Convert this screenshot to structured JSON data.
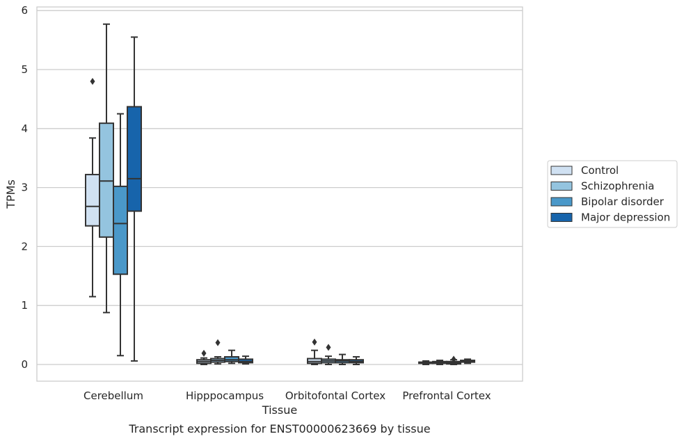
{
  "chart_data": {
    "type": "boxplot",
    "caption": "Transcript expression for ENST00000623669 by tissue",
    "xlabel": "Tissue",
    "ylabel": "TPMs",
    "ylim": [
      -0.28,
      6.08
    ],
    "yticks": [
      0,
      1,
      2,
      3,
      4,
      5,
      6
    ],
    "grid": "horizontal",
    "legend_position": "right",
    "categories": [
      "Cerebellum",
      "Hipppocampus",
      "Orbitofontal Cortex",
      "Prefrontal Cortex"
    ],
    "series": [
      {
        "name": "Control",
        "color": "#d0e1f2",
        "boxes": [
          {
            "whislo": 1.15,
            "q1": 2.35,
            "med": 2.68,
            "q3": 3.22,
            "whishi": 3.84,
            "fliers": [
              4.8
            ]
          },
          {
            "whislo": 0.0,
            "q1": 0.02,
            "med": 0.05,
            "q3": 0.08,
            "whishi": 0.11,
            "fliers": [
              0.19
            ]
          },
          {
            "whislo": 0.0,
            "q1": 0.02,
            "med": 0.05,
            "q3": 0.1,
            "whishi": 0.24,
            "fliers": [
              0.38
            ]
          },
          {
            "whislo": 0.0,
            "q1": 0.02,
            "med": 0.03,
            "q3": 0.04,
            "whishi": 0.06,
            "fliers": []
          }
        ]
      },
      {
        "name": "Schizophrenia",
        "color": "#94c4df",
        "boxes": [
          {
            "whislo": 0.88,
            "q1": 2.16,
            "med": 3.11,
            "q3": 4.09,
            "whishi": 5.77,
            "fliers": []
          },
          {
            "whislo": 0.01,
            "q1": 0.04,
            "med": 0.07,
            "q3": 0.1,
            "whishi": 0.13,
            "fliers": [
              0.37
            ]
          },
          {
            "whislo": 0.0,
            "q1": 0.03,
            "med": 0.06,
            "q3": 0.09,
            "whishi": 0.14,
            "fliers": [
              0.29
            ]
          },
          {
            "whislo": 0.0,
            "q1": 0.02,
            "med": 0.03,
            "q3": 0.05,
            "whishi": 0.07,
            "fliers": []
          }
        ]
      },
      {
        "name": "Bipolar disorder",
        "color": "#4a98c9",
        "boxes": [
          {
            "whislo": 0.15,
            "q1": 1.53,
            "med": 2.39,
            "q3": 3.02,
            "whishi": 4.25,
            "fliers": []
          },
          {
            "whislo": 0.02,
            "q1": 0.05,
            "med": 0.08,
            "q3": 0.13,
            "whishi": 0.24,
            "fliers": []
          },
          {
            "whislo": 0.0,
            "q1": 0.03,
            "med": 0.06,
            "q3": 0.08,
            "whishi": 0.17,
            "fliers": []
          },
          {
            "whislo": 0.0,
            "q1": 0.01,
            "med": 0.03,
            "q3": 0.05,
            "whishi": 0.08,
            "fliers": [
              0.09
            ]
          }
        ]
      },
      {
        "name": "Major depression",
        "color": "#1764ab",
        "boxes": [
          {
            "whislo": 0.06,
            "q1": 2.6,
            "med": 3.15,
            "q3": 4.37,
            "whishi": 5.55,
            "fliers": []
          },
          {
            "whislo": 0.01,
            "q1": 0.03,
            "med": 0.05,
            "q3": 0.09,
            "whishi": 0.14,
            "fliers": []
          },
          {
            "whislo": 0.0,
            "q1": 0.03,
            "med": 0.05,
            "q3": 0.08,
            "whishi": 0.13,
            "fliers": []
          },
          {
            "whislo": 0.02,
            "q1": 0.04,
            "med": 0.05,
            "q3": 0.07,
            "whishi": 0.09,
            "fliers": []
          }
        ]
      }
    ]
  }
}
